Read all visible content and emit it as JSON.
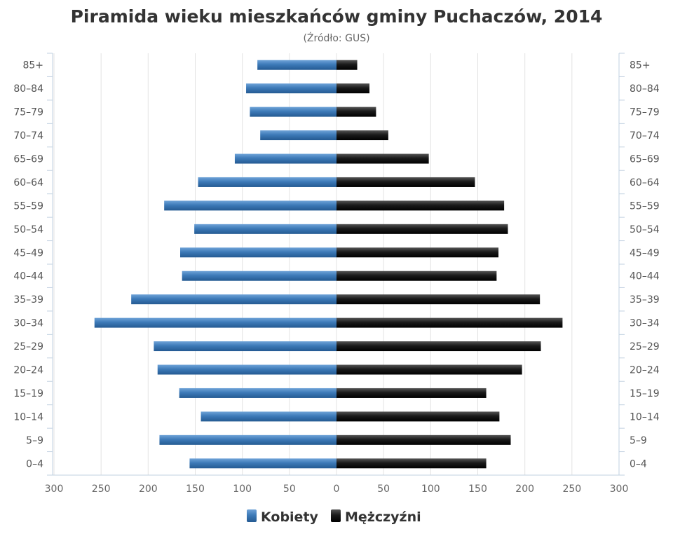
{
  "chart_data": {
    "type": "bar",
    "orientation": "horizontal-population-pyramid",
    "title": "Piramida wieku mieszkańców gminy Puchaczów, 2014",
    "subtitle": "(Źródło: GUS)",
    "categories": [
      "85+",
      "80–84",
      "75–79",
      "70–74",
      "65–69",
      "60–64",
      "55–59",
      "50–54",
      "45–49",
      "40–44",
      "35–39",
      "30–34",
      "25–29",
      "20–24",
      "15–19",
      "10–14",
      "5–9",
      "0–4"
    ],
    "series": [
      {
        "name": "Kobiety",
        "side": "left",
        "color": "#3d7ab8",
        "values": [
          84,
          96,
          92,
          81,
          108,
          147,
          183,
          151,
          166,
          164,
          218,
          257,
          194,
          190,
          167,
          144,
          188,
          156
        ]
      },
      {
        "name": "Mężczyźni",
        "side": "right",
        "color": "#1a1a1a",
        "values": [
          22,
          35,
          42,
          55,
          98,
          147,
          178,
          182,
          172,
          170,
          216,
          240,
          217,
          197,
          159,
          173,
          185,
          159
        ]
      }
    ],
    "xlim": [
      -300,
      300
    ],
    "xticks": [
      300,
      250,
      200,
      150,
      100,
      50,
      0,
      50,
      100,
      150,
      200,
      250,
      300
    ],
    "grid": true,
    "legend_position": "bottom-center"
  }
}
